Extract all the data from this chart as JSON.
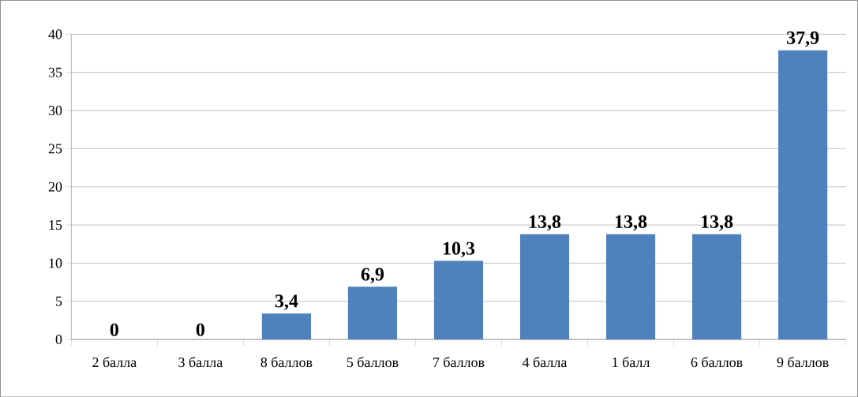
{
  "chart_data": {
    "type": "bar",
    "categories": [
      "2 балла",
      "3 балла",
      "8 баллов",
      "5 баллов",
      "7 баллов",
      "4 балла",
      "1 балл",
      "6 баллов",
      "9 баллов"
    ],
    "values": [
      0,
      0,
      3.4,
      6.9,
      10.3,
      13.8,
      13.8,
      13.8,
      37.9
    ],
    "value_labels": [
      "0",
      "0",
      "3,4",
      "6,9",
      "10,3",
      "13,8",
      "13,8",
      "13,8",
      "37,9"
    ],
    "color": "#4f81bd",
    "ylim": [
      0,
      40
    ],
    "yticks": [
      0,
      5,
      10,
      15,
      20,
      25,
      30,
      35,
      40
    ],
    "grid": "y"
  }
}
